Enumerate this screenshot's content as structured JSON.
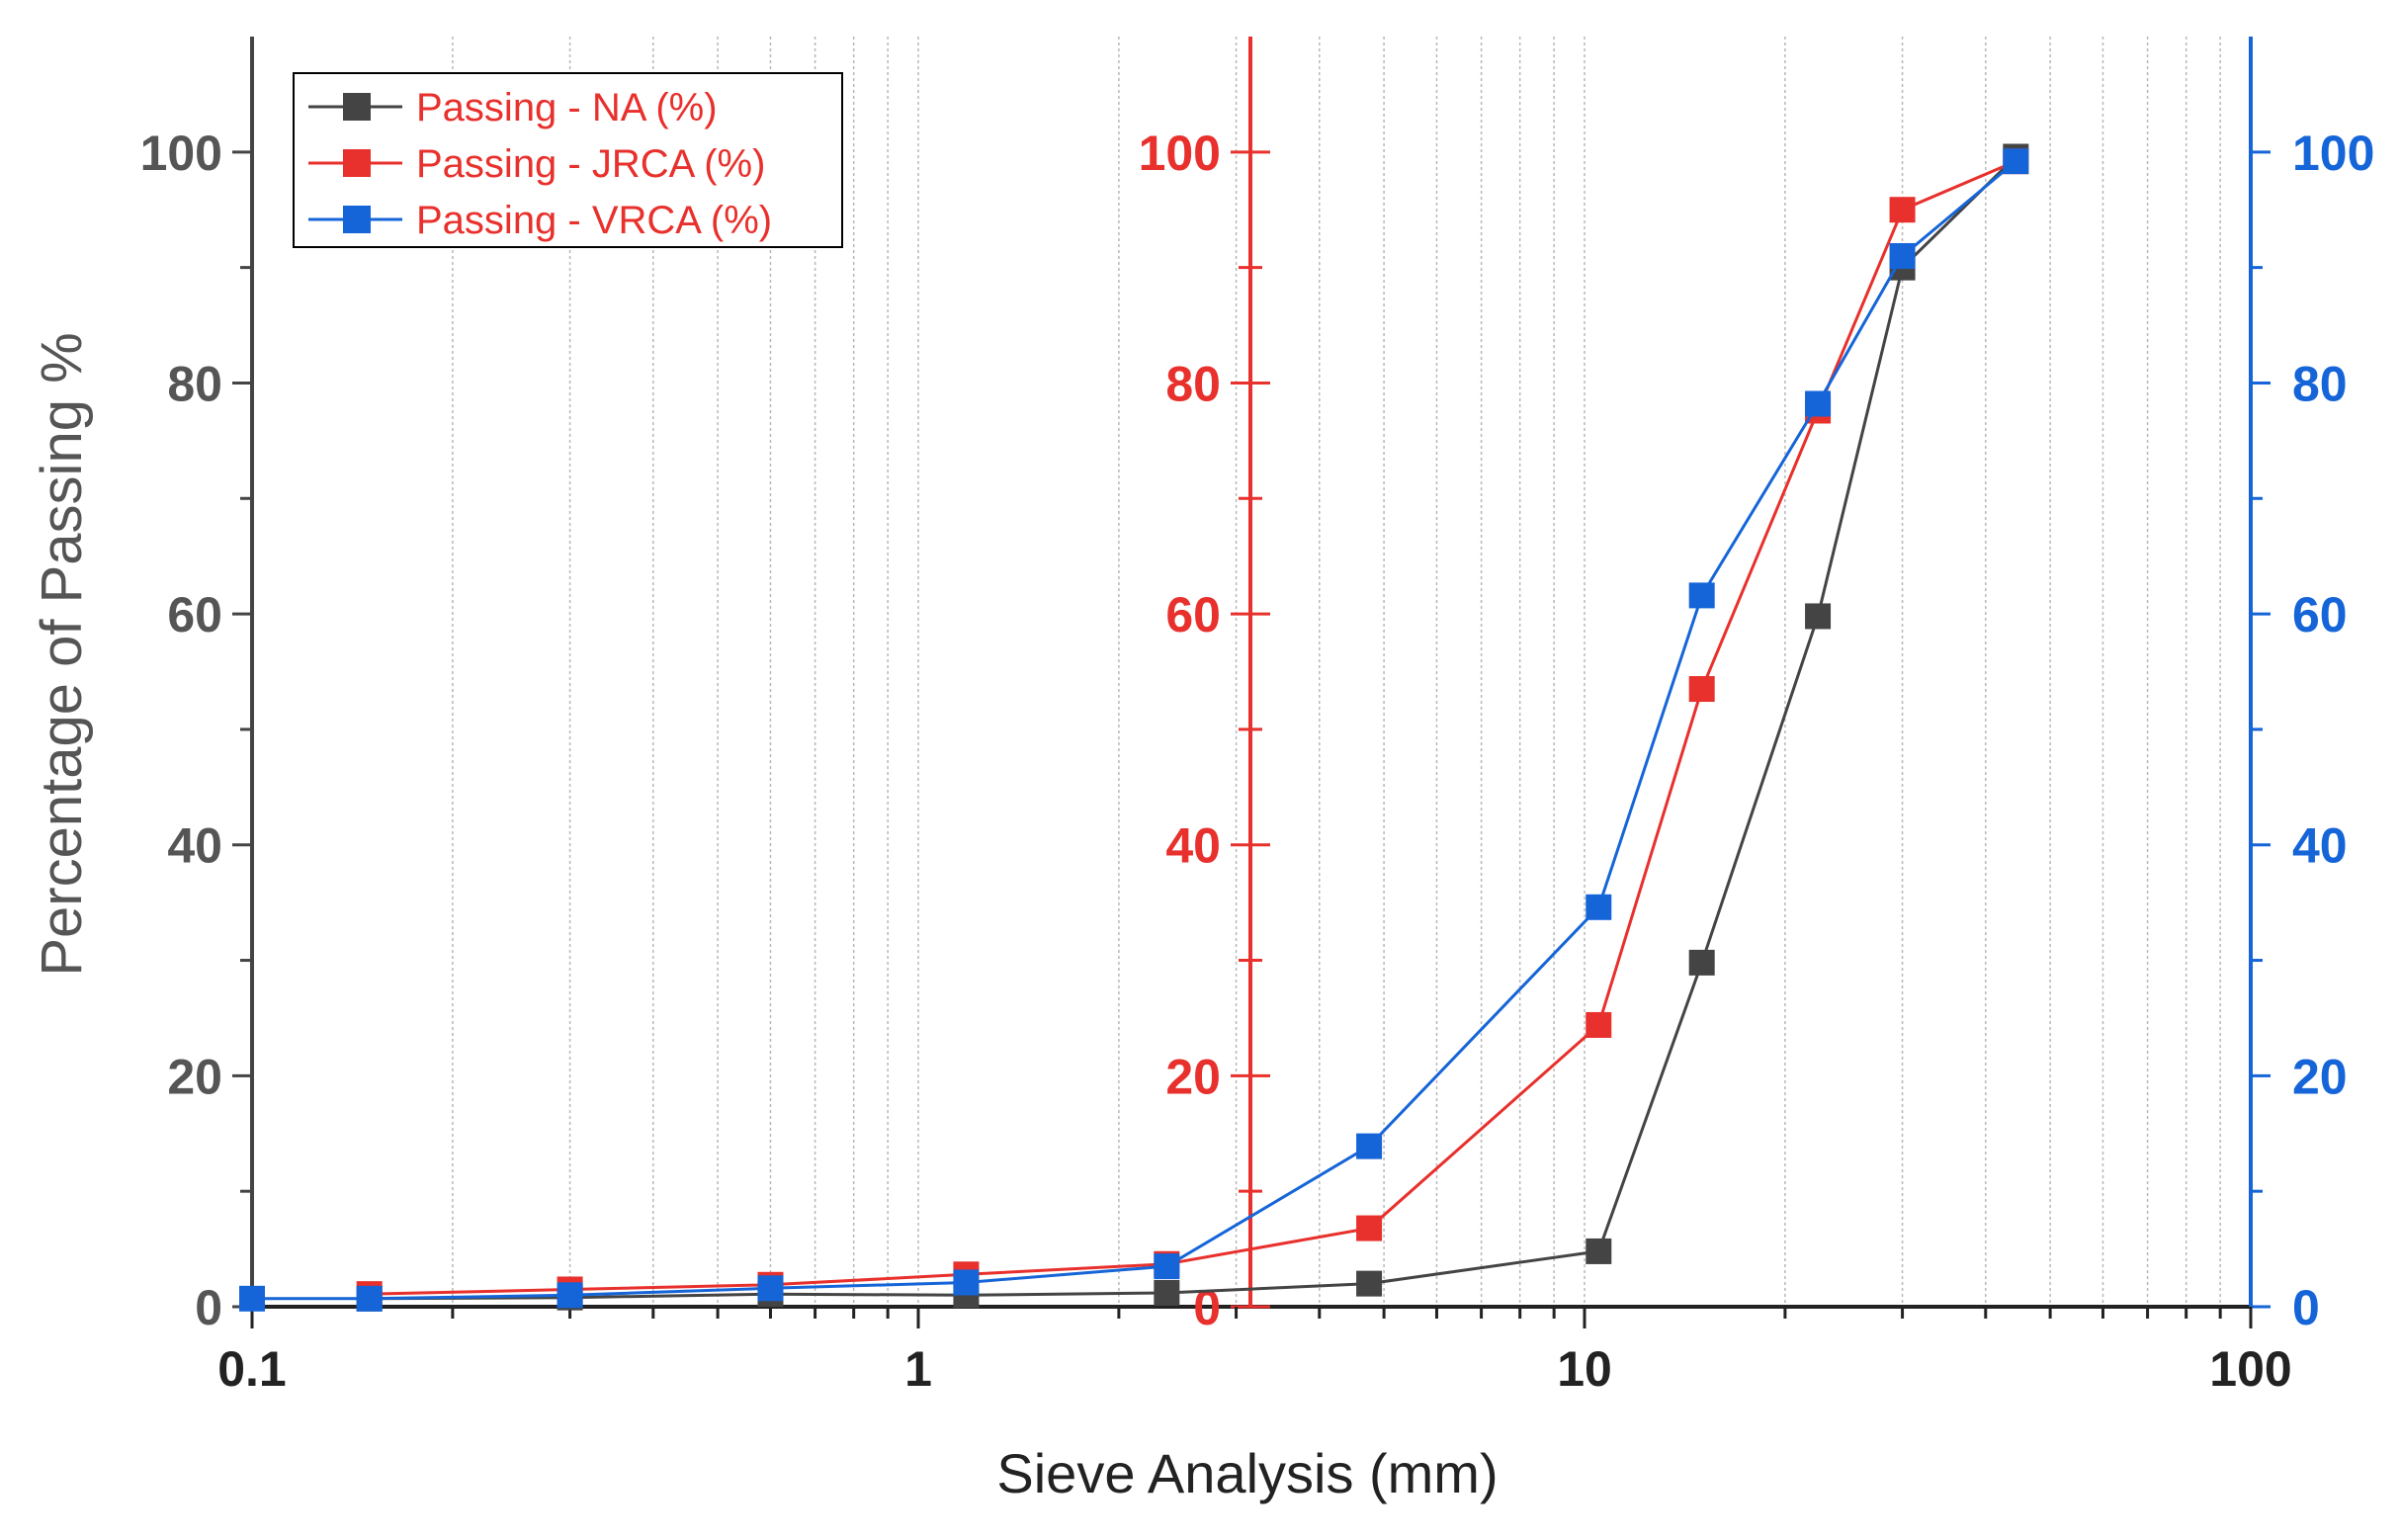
{
  "chart_data": {
    "type": "line",
    "title": "",
    "xlabel": "Sieve Analysis (mm)",
    "ylabel": "Percentage of Passing %",
    "xscale": "log",
    "xlim": [
      0.1,
      100
    ],
    "ylim": [
      0,
      110
    ],
    "grid": "vertical minor log gridlines",
    "x_tick_labels": [
      "0.1",
      "1",
      "10",
      "100"
    ],
    "y_tick_labels": [
      "0",
      "20",
      "40",
      "60",
      "80",
      "100"
    ],
    "secondary_axes": [
      {
        "name": "JRCA axis",
        "color": "#e8302c",
        "tick_labels": [
          "0",
          "20",
          "40",
          "60",
          "80",
          "100"
        ],
        "ylim": [
          0,
          110
        ]
      },
      {
        "name": "VRCA axis",
        "color": "#1565d8",
        "tick_labels": [
          "0",
          "20",
          "40",
          "60",
          "80",
          "100"
        ],
        "ylim": [
          0,
          110
        ]
      }
    ],
    "legend": {
      "placement": "top-left",
      "entries": [
        "Passing - NA (%)",
        "Passing - JRCA (%)",
        "Passing - VRCA (%)"
      ]
    },
    "series": [
      {
        "name": "Passing - NA (%)",
        "color": "#444444",
        "x": [
          0.15,
          0.3,
          0.6,
          1.18,
          2.36,
          4.75,
          10.5,
          15,
          22.4,
          30,
          44.4
        ],
        "values": [
          0.7,
          0.8,
          1.1,
          1.0,
          1.2,
          2.0,
          4.8,
          29.8,
          59.8,
          90.0,
          99.6
        ]
      },
      {
        "name": "Passing - JRCA (%)",
        "color": "#e8302c",
        "x": [
          0.15,
          0.3,
          0.6,
          1.18,
          2.36,
          4.75,
          10.5,
          15,
          22.4,
          30,
          44.4
        ],
        "values": [
          1.1,
          1.5,
          1.9,
          2.8,
          3.7,
          6.8,
          24.4,
          53.5,
          77.6,
          95.0,
          99.2
        ]
      },
      {
        "name": "Passing - VRCA (%)",
        "color": "#1565d8",
        "x": [
          0.1,
          0.15,
          0.3,
          0.6,
          1.18,
          2.36,
          4.75,
          10.5,
          15,
          22.4,
          30,
          44.4
        ],
        "values": [
          0.7,
          0.7,
          1.0,
          1.6,
          2.1,
          3.5,
          13.9,
          34.6,
          61.6,
          78.2,
          91.0,
          99.2
        ]
      }
    ]
  }
}
